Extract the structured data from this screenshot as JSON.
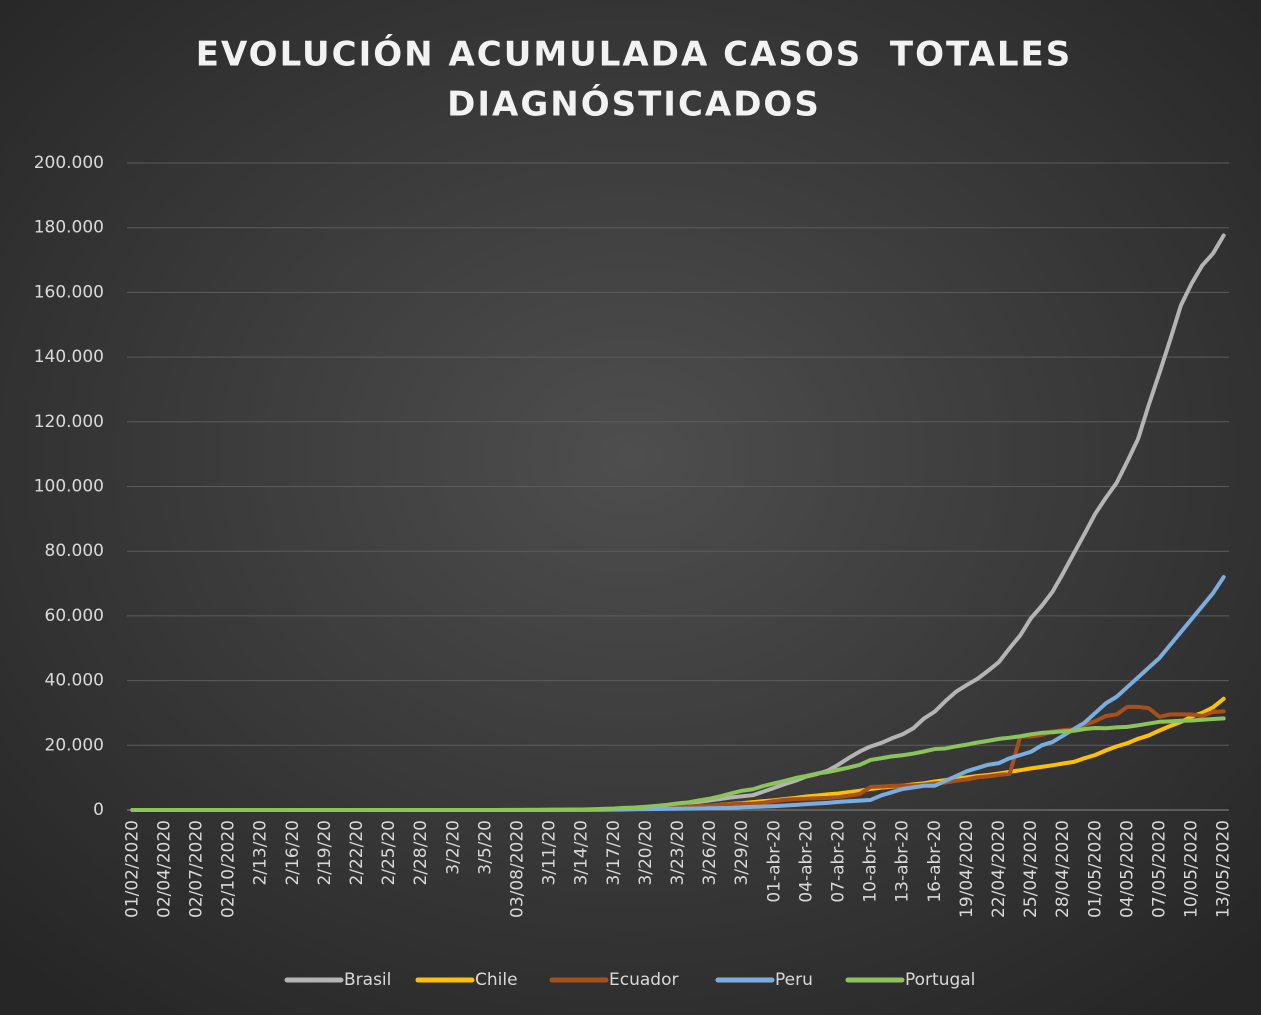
{
  "chart_data": {
    "type": "line",
    "title": [
      "EVOLUCIÓN ACUMULADA CASOS  TOTALES",
      "DIAGNÓSTICADOS"
    ],
    "categories": [
      "01/02/2020",
      null,
      null,
      "02/04/2020",
      null,
      null,
      "02/07/2020",
      null,
      null,
      "02/10/2020",
      null,
      null,
      "2/13/20",
      null,
      null,
      "2/16/20",
      null,
      null,
      "2/19/20",
      null,
      null,
      "2/22/20",
      null,
      null,
      "2/25/20",
      null,
      null,
      "2/28/20",
      null,
      null,
      "3/2/20",
      null,
      null,
      "3/5/20",
      null,
      null,
      "03/08/2020",
      null,
      null,
      "3/11/20",
      null,
      null,
      "3/14/20",
      null,
      null,
      "3/17/20",
      null,
      null,
      "3/20/20",
      null,
      null,
      "3/23/20",
      null,
      null,
      "3/26/20",
      null,
      null,
      "3/29/20",
      null,
      null,
      "01-abr-20",
      null,
      null,
      "04-abr-20",
      null,
      null,
      "07-abr-20",
      null,
      null,
      "10-abr-20",
      null,
      null,
      "13-abr-20",
      null,
      null,
      "16-abr-20",
      null,
      null,
      "19/04/2020",
      null,
      null,
      "22/04/2020",
      null,
      null,
      "25/04/2020",
      null,
      null,
      "28/04/2020",
      null,
      null,
      "01/05/2020",
      null,
      null,
      "04/05/2020",
      null,
      null,
      "07/05/2020",
      null,
      null,
      "10/05/2020",
      null,
      null,
      "13/05/2020"
    ],
    "series": [
      {
        "name": "Brasil",
        "color": "#b4b4b4",
        "values": [
          0,
          0,
          0,
          0,
          0,
          0,
          0,
          0,
          0,
          0,
          0,
          0,
          0,
          0,
          0,
          0,
          0,
          0,
          0,
          0,
          0,
          0,
          0,
          0,
          0,
          1,
          1,
          1,
          2,
          2,
          2,
          2,
          4,
          4,
          13,
          13,
          20,
          25,
          31,
          38,
          52,
          151,
          151,
          162,
          200,
          321,
          372,
          621,
          793,
          1021,
          1546,
          1924,
          2247,
          2554,
          2985,
          3417,
          3904,
          4256,
          4579,
          5717,
          6836,
          8044,
          9056,
          10360,
          11130,
          12161,
          14034,
          16170,
          18092,
          19638,
          20727,
          22169,
          23430,
          25262,
          28320,
          30425,
          33682,
          36599,
          38654,
          40581,
          43079,
          45757,
          50036,
          54043,
          59324,
          63100,
          67446,
          73235,
          79361,
          85380,
          91589,
          96559,
          101147,
          107780,
          114715,
          125218,
          135106,
          145328,
          155939,
          162699,
          168331,
          172000,
          177589
        ]
      },
      {
        "name": "Chile",
        "color": "#ffc000",
        "values": [
          0,
          0,
          0,
          0,
          0,
          0,
          0,
          0,
          0,
          0,
          0,
          0,
          0,
          0,
          0,
          0,
          0,
          0,
          0,
          0,
          0,
          0,
          0,
          0,
          0,
          0,
          0,
          0,
          0,
          0,
          0,
          1,
          1,
          4,
          5,
          7,
          10,
          13,
          17,
          23,
          33,
          43,
          61,
          75,
          156,
          201,
          238,
          342,
          434,
          537,
          632,
          746,
          922,
          1142,
          1306,
          1610,
          1909,
          2139,
          2449,
          2738,
          3031,
          3404,
          3737,
          4161,
          4471,
          4815,
          5116,
          5546,
          5972,
          6501,
          6927,
          7213,
          7525,
          7917,
          8273,
          8807,
          9252,
          9730,
          10088,
          10507,
          10832,
          11296,
          11812,
          12306,
          12858,
          13331,
          13813,
          14365,
          14885,
          16023,
          17008,
          18435,
          19663,
          20643,
          22016,
          23048,
          24581,
          25972,
          27219,
          28866,
          30063,
          31721,
          34381
        ]
      },
      {
        "name": "Ecuador",
        "color": "#a8501a",
        "values": [
          0,
          0,
          0,
          0,
          0,
          0,
          0,
          0,
          0,
          0,
          0,
          0,
          0,
          0,
          0,
          0,
          0,
          0,
          0,
          0,
          0,
          0,
          0,
          0,
          0,
          0,
          0,
          0,
          1,
          6,
          7,
          10,
          13,
          13,
          14,
          14,
          14,
          15,
          17,
          17,
          19,
          23,
          28,
          37,
          58,
          111,
          168,
          260,
          426,
          532,
          789,
          981,
          1082,
          1211,
          1403,
          1595,
          1823,
          1924,
          1962,
          2240,
          2748,
          3163,
          3368,
          3465,
          3646,
          3747,
          3995,
          4450,
          4965,
          7161,
          7257,
          7466,
          7529,
          7603,
          7858,
          8225,
          8450,
          9022,
          9468,
          10128,
          10398,
          10850,
          11183,
          22719,
          22719,
          23240,
          24258,
          24675,
          24934,
          26336,
          27464,
          29071,
          29538,
          31881,
          31881,
          31467,
          28818,
          29559,
          29559,
          29509,
          29071,
          30298,
          30502
        ]
      },
      {
        "name": "Peru",
        "color": "#7aaee0",
        "values": [
          0,
          0,
          0,
          0,
          0,
          0,
          0,
          0,
          0,
          0,
          0,
          0,
          0,
          0,
          0,
          0,
          0,
          0,
          0,
          0,
          0,
          0,
          0,
          0,
          0,
          0,
          0,
          0,
          0,
          0,
          0,
          0,
          0,
          0,
          1,
          6,
          7,
          9,
          11,
          17,
          22,
          38,
          43,
          71,
          86,
          117,
          145,
          234,
          263,
          318,
          363,
          395,
          416,
          480,
          580,
          635,
          671,
          852,
          950,
          1065,
          1200,
          1400,
          1600,
          1800,
          2000,
          2200,
          2500,
          2700,
          2900,
          3100,
          4500,
          5500,
          6500,
          7000,
          7500,
          7500,
          9000,
          10500,
          12000,
          13000,
          14000,
          14500,
          16000,
          17000,
          18000,
          20000,
          21000,
          23000,
          25000,
          27000,
          30000,
          33000,
          35000,
          38000,
          41000,
          44000,
          47000,
          51000,
          55000,
          59000,
          63000,
          67000,
          72000
        ]
      },
      {
        "name": "Portugal",
        "color": "#8cc45c",
        "values": [
          0,
          0,
          0,
          0,
          0,
          0,
          0,
          0,
          0,
          0,
          0,
          0,
          0,
          0,
          0,
          0,
          0,
          0,
          0,
          0,
          0,
          0,
          0,
          0,
          0,
          0,
          0,
          0,
          0,
          0,
          2,
          4,
          6,
          9,
          13,
          21,
          30,
          39,
          41,
          59,
          78,
          112,
          169,
          245,
          331,
          448,
          642,
          785,
          1020,
          1280,
          1600,
          2060,
          2362,
          2995,
          3544,
          4268,
          5170,
          5962,
          6408,
          7443,
          8251,
          9034,
          9886,
          10524,
          11278,
          11730,
          12442,
          13141,
          13956,
          15472,
          15987,
          16585,
          16934,
          17448,
          18091,
          18841,
          19022,
          19685,
          20206,
          20863,
          21379,
          21982,
          22353,
          22797,
          23392,
          23864,
          24027,
          24322,
          24505,
          25045,
          25351,
          25282,
          25524,
          25702,
          26182,
          26715,
          27268,
          27406,
          27581,
          27679,
          27913,
          28132,
          28319
        ]
      }
    ],
    "ylim": [
      0,
      200000
    ],
    "yticks": [
      0,
      {
        "value": 20000,
        "label": "20.000"
      },
      {
        "value": 40000,
        "label": "40.000"
      },
      {
        "value": 60000,
        "label": "60.000"
      },
      {
        "value": 80000,
        "label": "80.000"
      },
      {
        "value": 100000,
        "label": "100.000"
      },
      {
        "value": 120000,
        "label": "120.000"
      },
      {
        "value": 140000,
        "label": "140.000"
      },
      {
        "value": 160000,
        "label": "160.000"
      },
      {
        "value": 180000,
        "label": "180.000"
      },
      {
        "value": 200000,
        "label": "200.000"
      }
    ],
    "grid": true,
    "legend": "bottom"
  }
}
